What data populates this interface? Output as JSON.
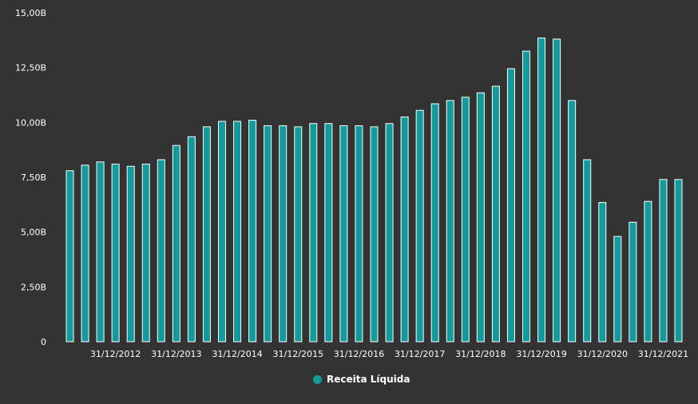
{
  "chart_data": {
    "type": "bar",
    "y_ticks": [
      "0",
      "2,50B",
      "5,00B",
      "7,50B",
      "10,00B",
      "12,50B",
      "15,00B"
    ],
    "ylim": [
      0,
      15
    ],
    "x_tick_labels": [
      "31/12/2012",
      "31/12/2013",
      "31/12/2014",
      "31/12/2015",
      "31/12/2016",
      "31/12/2017",
      "31/12/2018",
      "31/12/2019",
      "31/12/2020",
      "31/12/2021"
    ],
    "series": [
      {
        "name": "Receita Líquida",
        "color": "#139b9b",
        "values": [
          7.8,
          8.05,
          8.2,
          8.1,
          8.0,
          8.1,
          8.3,
          8.95,
          9.35,
          9.8,
          10.05,
          10.05,
          10.1,
          9.85,
          9.85,
          9.8,
          9.95,
          9.95,
          9.85,
          9.85,
          9.8,
          9.95,
          10.25,
          10.55,
          10.85,
          11.0,
          11.15,
          11.35,
          11.65,
          12.45,
          13.25,
          13.85,
          13.8,
          11.0,
          8.3,
          6.35,
          4.8,
          5.45,
          6.4,
          7.4,
          7.4
        ]
      }
    ]
  },
  "legend": {
    "label": "Receita Líquida"
  }
}
